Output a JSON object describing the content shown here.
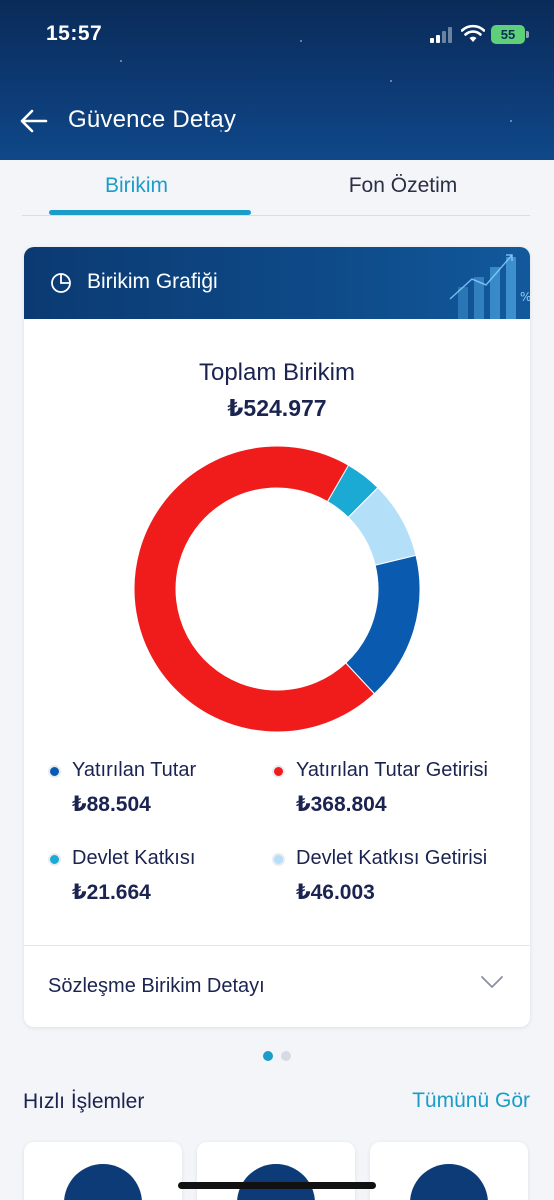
{
  "status_bar": {
    "time": "15:57",
    "battery": "55"
  },
  "header": {
    "title": "Güvence Detay"
  },
  "tabs": [
    {
      "label": "Birikim",
      "active": true
    },
    {
      "label": "Fon Özetim",
      "active": false
    }
  ],
  "card": {
    "title": "Birikim Grafiği",
    "total_label": "Toplam Birikim",
    "total_value": "₺524.977",
    "legend": [
      {
        "label": "Yatırılan Tutar",
        "value": "₺88.504",
        "color": "#0a5bb0"
      },
      {
        "label": "Yatırılan Tutar Getirisi",
        "value": "₺368.804",
        "color": "#f01c1c"
      },
      {
        "label": "Devlet Katkısı",
        "value": "₺21.664",
        "color": "#1aaad4"
      },
      {
        "label": "Devlet Katkısı Getirisi",
        "value": "₺46.003",
        "color": "#b4dff8"
      }
    ],
    "contract_detail_label": "Sözleşme Birikim Detayı"
  },
  "chart_data": {
    "type": "pie",
    "categories": [
      "Yatırılan Tutar",
      "Yatırılan Tutar Getirisi",
      "Devlet Katkısı",
      "Devlet Katkısı Getirisi"
    ],
    "values": [
      88504,
      368804,
      21664,
      46003
    ],
    "colors": [
      "#0a5bb0",
      "#f01c1c",
      "#1aaad4",
      "#b4dff8"
    ],
    "title": "Toplam Birikim",
    "legend_position": "bottom",
    "donut": true
  },
  "pager": {
    "count": 2,
    "active_index": 0
  },
  "quick_actions": {
    "title": "Hızlı İşlemler",
    "see_all": "Tümünü Gör",
    "cards": 3
  },
  "colors": {
    "accent": "#1b9cc9",
    "header_bg": "#0d3a74",
    "text": "#1b2350"
  }
}
